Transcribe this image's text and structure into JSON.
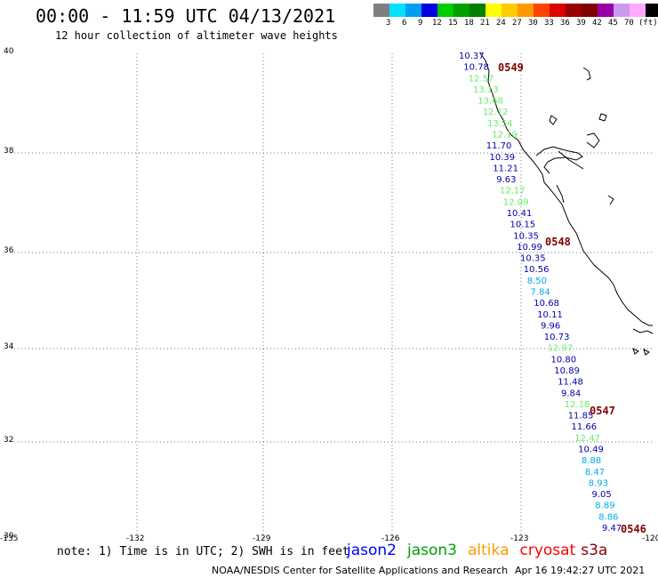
{
  "header": {
    "title": "00:00 - 11:59 UTC 04/13/2021",
    "subtitle": "12 hour collection of altimeter wave heights"
  },
  "legend": {
    "colors": [
      "#7f7f7f",
      "#00e0ff",
      "#00a0f0",
      "#0000e0",
      "#00cc00",
      "#00a000",
      "#008000",
      "#ffff00",
      "#ffcc00",
      "#ff9900",
      "#ff4400",
      "#dd0000",
      "#990000",
      "#800000",
      "#9900aa",
      "#cc99ee",
      "#ffaaff",
      "#000000"
    ],
    "labels": [
      "3",
      "6",
      "9",
      "12",
      "15",
      "18",
      "21",
      "24",
      "27",
      "30",
      "33",
      "36",
      "39",
      "42",
      "45",
      "70",
      "(ft)"
    ]
  },
  "axes": {
    "lat_labels": [
      "40",
      "38",
      "36",
      "34",
      "32",
      "30"
    ],
    "lon_labels": [
      "-135",
      "-132",
      "-129",
      "-126",
      "-123",
      "-120"
    ]
  },
  "track": [
    {
      "v": "10.37",
      "c": "#0000b0"
    },
    {
      "v": "10.78",
      "c": "#0000b0"
    },
    {
      "v": "12.57",
      "c": "#66ee66"
    },
    {
      "v": "13.13",
      "c": "#66ee66"
    },
    {
      "v": "13.68",
      "c": "#66ee66"
    },
    {
      "v": "12.12",
      "c": "#66ee66"
    },
    {
      "v": "13.54",
      "c": "#66ee66"
    },
    {
      "v": "12.19",
      "c": "#66ee66"
    },
    {
      "v": "11.70",
      "c": "#0000b0"
    },
    {
      "v": "10.39",
      "c": "#0000b0"
    },
    {
      "v": "11.21",
      "c": "#0000b0"
    },
    {
      "v": "9.63",
      "c": "#0000b0"
    },
    {
      "v": "12.17",
      "c": "#66ee66"
    },
    {
      "v": "12.09",
      "c": "#66ee66"
    },
    {
      "v": "10.41",
      "c": "#0000b0"
    },
    {
      "v": "10.15",
      "c": "#0000b0"
    },
    {
      "v": "10.35",
      "c": "#0000b0"
    },
    {
      "v": "10.99",
      "c": "#0000b0"
    },
    {
      "v": "10.35",
      "c": "#0000b0"
    },
    {
      "v": "10.56",
      "c": "#0000b0"
    },
    {
      "v": "8.50",
      "c": "#00aaee"
    },
    {
      "v": "7.84",
      "c": "#00aaee"
    },
    {
      "v": "10.68",
      "c": "#0000b0"
    },
    {
      "v": "10.11",
      "c": "#0000b0"
    },
    {
      "v": "9.96",
      "c": "#0000b0"
    },
    {
      "v": "10.73",
      "c": "#0000b0"
    },
    {
      "v": "12.97",
      "c": "#66ee66"
    },
    {
      "v": "10.80",
      "c": "#0000b0"
    },
    {
      "v": "10.89",
      "c": "#0000b0"
    },
    {
      "v": "11.48",
      "c": "#0000b0"
    },
    {
      "v": "9.84",
      "c": "#0000b0"
    },
    {
      "v": "12.18",
      "c": "#66ee66"
    },
    {
      "v": "11.85",
      "c": "#0000b0"
    },
    {
      "v": "11.66",
      "c": "#0000b0"
    },
    {
      "v": "12.47",
      "c": "#66ee66"
    },
    {
      "v": "10.49",
      "c": "#0000b0"
    },
    {
      "v": "8.88",
      "c": "#00aaee"
    },
    {
      "v": "8.47",
      "c": "#00aaee"
    },
    {
      "v": "8.93",
      "c": "#00aaee"
    },
    {
      "v": "9.05",
      "c": "#0000b0"
    },
    {
      "v": "8.89",
      "c": "#00aaee"
    },
    {
      "v": "8.86",
      "c": "#00aaee"
    },
    {
      "v": "9.47",
      "c": "#0000b0"
    }
  ],
  "times": [
    "0549",
    "0548",
    "0547",
    "0546"
  ],
  "footer": {
    "note": "note: 1) Time is in UTC; 2) SWH is in feet",
    "satellites": [
      {
        "name": "jason2",
        "color": "#0000ff"
      },
      {
        "name": "jason3",
        "color": "#00a000"
      },
      {
        "name": "altika",
        "color": "#ff9900"
      },
      {
        "name": "cryosat",
        "color": "#ff0000"
      },
      {
        "name": "s3a",
        "color": "#880000"
      }
    ],
    "credit": "NOAA/NESDIS Center for Satellite Applications and Research",
    "timestamp": "Apr 16 19:42:27 UTC 2021"
  }
}
